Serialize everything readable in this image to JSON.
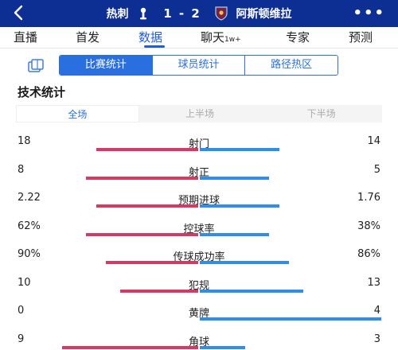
{
  "header": {
    "home_team": "热刺",
    "score": "1 - 2",
    "away_team": "阿斯顿维拉",
    "more_label": "•••"
  },
  "nav": {
    "tabs": [
      {
        "label": "直播"
      },
      {
        "label": "首发"
      },
      {
        "label": "数据",
        "active": true
      },
      {
        "label": "聊天",
        "badge": "1w+"
      },
      {
        "label": "专家"
      },
      {
        "label": "预测"
      }
    ]
  },
  "subtabs": [
    {
      "label": "比赛统计",
      "active": true
    },
    {
      "label": "球员统计"
    },
    {
      "label": "路径热区"
    }
  ],
  "section_title": "技术统计",
  "periods": [
    {
      "label": "全场",
      "active": true
    },
    {
      "label": "上半场"
    },
    {
      "label": "下半场"
    }
  ],
  "colors": {
    "header_bg": "#0d2f93",
    "accent": "#2a6fe0",
    "home_bar": "#d43a66",
    "away_bar": "#2f8fe8"
  },
  "stats": [
    {
      "label": "射门",
      "home": "18",
      "away": "14",
      "home_ratio": 0.56,
      "away_ratio": 0.44
    },
    {
      "label": "射正",
      "home": "8",
      "away": "5",
      "home_ratio": 0.62,
      "away_ratio": 0.38
    },
    {
      "label": "预期进球",
      "home": "2.22",
      "away": "1.76",
      "home_ratio": 0.56,
      "away_ratio": 0.44
    },
    {
      "label": "控球率",
      "home": "62%",
      "away": "38%",
      "home_ratio": 0.62,
      "away_ratio": 0.38
    },
    {
      "label": "传球成功率",
      "home": "90%",
      "away": "86%",
      "home_ratio": 0.51,
      "away_ratio": 0.49
    },
    {
      "label": "犯规",
      "home": "10",
      "away": "13",
      "home_ratio": 0.43,
      "away_ratio": 0.57
    },
    {
      "label": "黄牌",
      "home": "0",
      "away": "4",
      "home_ratio": 0.0,
      "away_ratio": 1.0
    },
    {
      "label": "角球",
      "home": "9",
      "away": "3",
      "home_ratio": 0.75,
      "away_ratio": 0.25
    }
  ]
}
